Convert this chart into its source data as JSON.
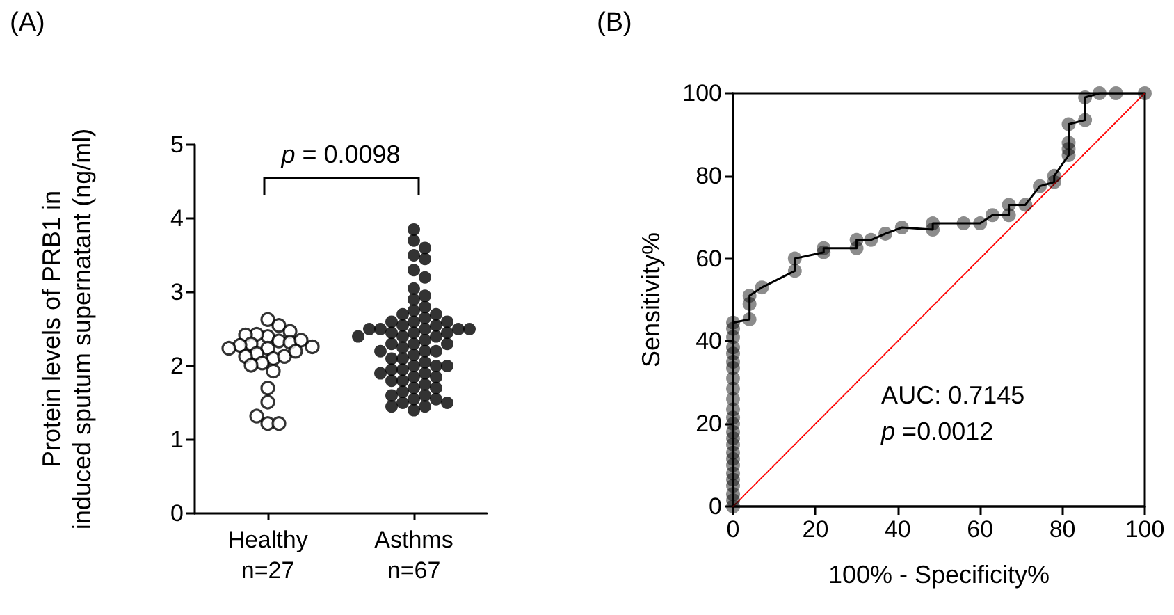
{
  "chart_data": [
    {
      "type": "scatter",
      "title": "(A)",
      "ylabel": "Protein levels of PRB1 in induced sputum supernatant (ng/ml)",
      "categories": [
        "Healthy\nn=27",
        "Asthms\nn=67"
      ],
      "ylim": [
        0,
        5
      ],
      "yticks": [
        0,
        1,
        2,
        3,
        4,
        5
      ],
      "annotations": [
        "p = 0.0098"
      ],
      "marker": "circle",
      "series": [
        {
          "color": "#000000",
          "x": [
            "Healthy\nn=27",
            "Healthy\nn=27",
            "Healthy\nn=27",
            "Healthy\nn=27",
            "Healthy\nn=27",
            "Healthy\nn=27",
            "Healthy\nn=27",
            "Healthy\nn=27",
            "Healthy\nn=27",
            "Healthy\nn=27",
            "Healthy\nn=27",
            "Healthy\nn=27",
            "Healthy\nn=27",
            "Healthy\nn=27",
            "Healthy\nn=27",
            "Healthy\nn=27",
            "Healthy\nn=27",
            "Healthy\nn=27",
            "Healthy\nn=27",
            "Healthy\nn=27",
            "Healthy\nn=27",
            "Healthy\nn=27",
            "Healthy\nn=27",
            "Healthy\nn=27",
            "Healthy\nn=27",
            "Healthy\nn=27",
            "Healthy\nn=27"
          ],
          "values": [
            2.63,
            2.55,
            2.4,
            2.43,
            2.47,
            2.42,
            2.34,
            2.24,
            2.3,
            2.32,
            2.35,
            2.28,
            2.24,
            2.26,
            2.1,
            2.17,
            2.13,
            2.13,
            2.2,
            2.04,
            1.93,
            2.01,
            1.7,
            1.51,
            1.22,
            1.22,
            1.32
          ]
        },
        {
          "color": "#000000",
          "x": [
            "Asthms\nn=67",
            "Asthms\nn=67",
            "Asthms\nn=67",
            "Asthms\nn=67",
            "Asthms\nn=67",
            "Asthms\nn=67",
            "Asthms\nn=67",
            "Asthms\nn=67",
            "Asthms\nn=67",
            "Asthms\nn=67",
            "Asthms\nn=67",
            "Asthms\nn=67",
            "Asthms\nn=67",
            "Asthms\nn=67",
            "Asthms\nn=67",
            "Asthms\nn=67",
            "Asthms\nn=67",
            "Asthms\nn=67",
            "Asthms\nn=67",
            "Asthms\nn=67",
            "Asthms\nn=67",
            "Asthms\nn=67",
            "Asthms\nn=67",
            "Asthms\nn=67",
            "Asthms\nn=67",
            "Asthms\nn=67",
            "Asthms\nn=67",
            "Asthms\nn=67",
            "Asthms\nn=67",
            "Asthms\nn=67",
            "Asthms\nn=67",
            "Asthms\nn=67",
            "Asthms\nn=67",
            "Asthms\nn=67",
            "Asthms\nn=67",
            "Asthms\nn=67",
            "Asthms\nn=67",
            "Asthms\nn=67",
            "Asthms\nn=67",
            "Asthms\nn=67",
            "Asthms\nn=67",
            "Asthms\nn=67",
            "Asthms\nn=67",
            "Asthms\nn=67",
            "Asthms\nn=67",
            "Asthms\nn=67",
            "Asthms\nn=67",
            "Asthms\nn=67",
            "Asthms\nn=67",
            "Asthms\nn=67",
            "Asthms\nn=67",
            "Asthms\nn=67",
            "Asthms\nn=67",
            "Asthms\nn=67",
            "Asthms\nn=67",
            "Asthms\nn=67",
            "Asthms\nn=67",
            "Asthms\nn=67",
            "Asthms\nn=67",
            "Asthms\nn=67",
            "Asthms\nn=67",
            "Asthms\nn=67",
            "Asthms\nn=67",
            "Asthms\nn=67",
            "Asthms\nn=67",
            "Asthms\nn=67",
            "Asthms\nn=67"
          ],
          "values": [
            3.85,
            3.7,
            3.6,
            3.5,
            3.45,
            3.3,
            3.2,
            3.05,
            2.95,
            2.9,
            2.8,
            2.75,
            2.7,
            2.7,
            2.65,
            2.6,
            2.6,
            2.6,
            2.55,
            2.55,
            2.5,
            2.5,
            2.5,
            2.5,
            2.5,
            2.45,
            2.45,
            2.45,
            2.4,
            2.4,
            2.4,
            2.35,
            2.3,
            2.3,
            2.3,
            2.25,
            2.2,
            2.2,
            2.2,
            2.15,
            2.1,
            2.1,
            2.05,
            2.0,
            2.0,
            2.0,
            1.95,
            1.95,
            1.9,
            1.9,
            1.85,
            1.85,
            1.8,
            1.8,
            1.75,
            1.7,
            1.7,
            1.65,
            1.6,
            1.6,
            1.55,
            1.55,
            1.5,
            1.5,
            1.45,
            1.45,
            1.4
          ]
        }
      ]
    },
    {
      "type": "line",
      "title": "(B)",
      "xlabel": "100% - Specificity%",
      "ylabel": "Sensitivity%",
      "xlim": [
        0,
        100
      ],
      "ylim": [
        0,
        100
      ],
      "xticks": [
        0,
        20,
        40,
        60,
        80,
        100
      ],
      "yticks": [
        0,
        20,
        40,
        60,
        80,
        100
      ],
      "annotations": [
        "AUC: 0.7145",
        "p =0.0012"
      ],
      "series": [
        {
          "color": "#000000",
          "marker": "circle",
          "line_style": "solid",
          "x": [
            0,
            0,
            0,
            0,
            0,
            0,
            0,
            0,
            0,
            0,
            0,
            0,
            0,
            0,
            0,
            0,
            0,
            0,
            0,
            0,
            0,
            0,
            0,
            0,
            0,
            4,
            4,
            4,
            7,
            15,
            15,
            22,
            22,
            30,
            30,
            33.5,
            37,
            41,
            48.5,
            48.5,
            56,
            60,
            63,
            67,
            67,
            71,
            74.5,
            78,
            78,
            81.5,
            81.5,
            81.5,
            81.5,
            85.5,
            85.5,
            89,
            93,
            100
          ],
          "values": [
            0,
            1.5,
            3,
            5,
            6.5,
            8,
            10,
            11.5,
            13,
            15,
            16.5,
            18,
            20,
            21.5,
            23.5,
            26,
            28.5,
            31,
            33.5,
            35,
            37,
            38.5,
            41,
            43,
            44.5,
            45.3,
            49,
            51,
            53,
            57,
            60,
            61.5,
            62.5,
            62.5,
            64.5,
            64.5,
            66,
            67.5,
            67,
            68.5,
            68.5,
            68.5,
            70.5,
            70.5,
            73,
            73,
            77.5,
            78.5,
            80,
            85,
            86.5,
            88,
            92.5,
            93.5,
            99,
            100,
            100,
            100
          ]
        },
        {
          "color": "#ff0000",
          "marker": "none",
          "line_style": "dotted",
          "x": [
            0,
            100
          ],
          "values": [
            0,
            100
          ]
        }
      ]
    }
  ]
}
